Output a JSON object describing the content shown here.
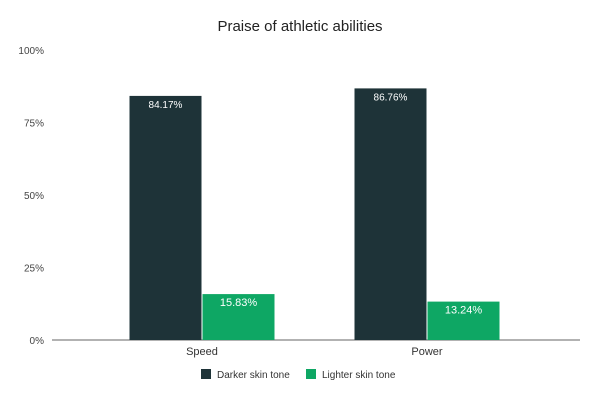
{
  "chart_data": {
    "type": "bar",
    "title": "Praise of athletic abilities",
    "categories": [
      "Speed",
      "Power"
    ],
    "series": [
      {
        "name": "Darker skin tone",
        "values": [
          84.17,
          86.76
        ],
        "labels": [
          "84.17%",
          "86.76%"
        ],
        "color": "#1e3338"
      },
      {
        "name": "Lighter skin tone",
        "values": [
          15.83,
          13.24
        ],
        "labels": [
          "15.83%",
          "13.24%"
        ],
        "color": "#0ea764"
      }
    ],
    "ylim": [
      0,
      100
    ],
    "yticks": [
      0,
      25,
      50,
      75,
      100
    ],
    "ytick_labels": [
      "0%",
      "25%",
      "50%",
      "75%",
      "100%"
    ],
    "xlabel": "",
    "ylabel": "",
    "grid": false,
    "legend_position": "bottom"
  }
}
